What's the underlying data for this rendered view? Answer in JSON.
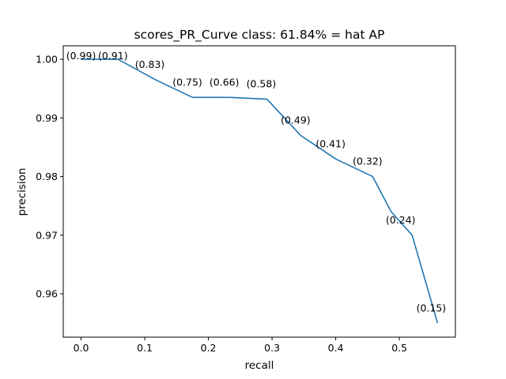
{
  "chart_data": {
    "type": "line",
    "title": "scores_PR_Curve class: 61.84% = hat AP",
    "xlabel": "recall",
    "ylabel": "precision",
    "xlim": [
      -0.028,
      0.588
    ],
    "ylim": [
      0.9526,
      1.0023
    ],
    "xticks": [
      {
        "value": 0.0,
        "label": "0.0"
      },
      {
        "value": 0.1,
        "label": "0.1"
      },
      {
        "value": 0.2,
        "label": "0.2"
      },
      {
        "value": 0.3,
        "label": "0.3"
      },
      {
        "value": 0.4,
        "label": "0.4"
      },
      {
        "value": 0.5,
        "label": "0.5"
      }
    ],
    "yticks": [
      {
        "value": 0.96,
        "label": "0.96"
      },
      {
        "value": 0.97,
        "label": "0.97"
      },
      {
        "value": 0.98,
        "label": "0.98"
      },
      {
        "value": 0.99,
        "label": "0.99"
      },
      {
        "value": 1.0,
        "label": "1.00"
      }
    ],
    "grid": false,
    "color": "#1f77b4",
    "series": [
      {
        "x": [
          0.0,
          0.058,
          0.117,
          0.175,
          0.233,
          0.292,
          0.345,
          0.4,
          0.458,
          0.487,
          0.52,
          0.56
        ],
        "y": [
          1.0,
          1.0,
          0.9965,
          0.9935,
          0.9935,
          0.9932,
          0.987,
          0.983,
          0.98,
          0.974,
          0.97,
          0.955
        ]
      }
    ],
    "annotations": [
      {
        "x": 0.0,
        "y": 1.0,
        "text": "(0.99)"
      },
      {
        "x": 0.05,
        "y": 1.0,
        "text": "(0.91)"
      },
      {
        "x": 0.108,
        "y": 0.9985,
        "text": "(0.83)"
      },
      {
        "x": 0.167,
        "y": 0.9955,
        "text": "(0.75)"
      },
      {
        "x": 0.225,
        "y": 0.9955,
        "text": "(0.66)"
      },
      {
        "x": 0.283,
        "y": 0.9952,
        "text": "(0.58)"
      },
      {
        "x": 0.337,
        "y": 0.989,
        "text": "(0.49)"
      },
      {
        "x": 0.392,
        "y": 0.985,
        "text": "(0.41)"
      },
      {
        "x": 0.45,
        "y": 0.982,
        "text": "(0.32)"
      },
      {
        "x": 0.502,
        "y": 0.972,
        "text": "(0.24)"
      },
      {
        "x": 0.55,
        "y": 0.957,
        "text": "(0.15)"
      }
    ]
  }
}
